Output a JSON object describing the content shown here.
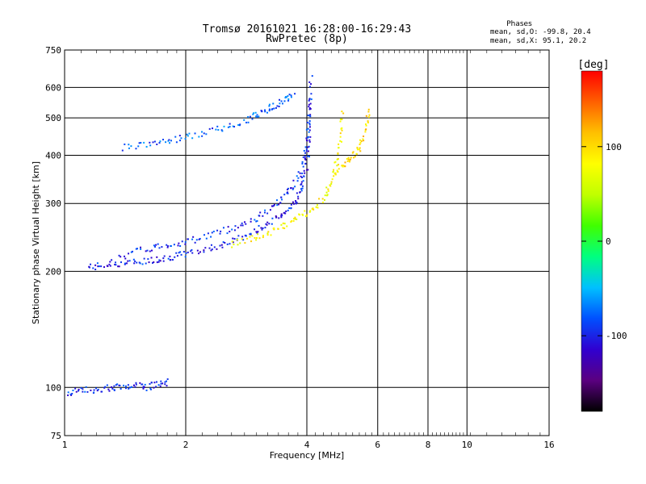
{
  "chart_data": {
    "type": "scatter",
    "title": "Tromsø 20161021 16:28:00-16:29:43",
    "subtitle": "RwPretec (8p)",
    "xlabel": "Frequency [MHz]",
    "ylabel": "Stationary phase Virtual Height [km]",
    "x_scale": "log",
    "y_scale": "log",
    "xlim": [
      1,
      16
    ],
    "ylim": [
      75,
      750
    ],
    "x_ticks": [
      "1",
      "2",
      "4",
      "6",
      "8",
      "10",
      "16"
    ],
    "y_ticks": [
      "75",
      "100",
      "200",
      "300",
      "400",
      "500",
      "600",
      "750"
    ],
    "grid": true,
    "legend": {
      "title": "Phases",
      "lines": [
        "mean, sd,O: -99.8, 20.4",
        "mean, sd,X:  95.1, 20.2"
      ]
    },
    "colorbar": {
      "label": "[deg]",
      "range": [
        -180,
        180
      ],
      "ticks": [
        "100",
        "0",
        "-100"
      ],
      "colormap": [
        "#000000",
        "#5a0080",
        "#3000d0",
        "#0050ff",
        "#00c0ff",
        "#00ff80",
        "#40ff00",
        "#c0ff00",
        "#ffff00",
        "#ffc000",
        "#ff6000",
        "#ff0000"
      ]
    },
    "series": [
      {
        "trace": "O-lower",
        "phase": -100,
        "x": [
          1.15,
          1.25,
          1.4,
          1.55,
          1.7,
          1.85,
          2.0,
          2.25,
          2.5,
          2.75,
          3.0,
          3.25,
          3.5,
          3.7,
          3.85,
          3.95,
          4.02,
          4.05,
          4.08
        ],
        "y": [
          205,
          207,
          210,
          212,
          215,
          218,
          222,
          228,
          236,
          244,
          255,
          268,
          282,
          298,
          320,
          350,
          400,
          470,
          570
        ]
      },
      {
        "trace": "O-upper",
        "phase": -95,
        "x": [
          1.3,
          1.5,
          1.7,
          1.9,
          2.1,
          2.4,
          2.7,
          3.0,
          3.3,
          3.5,
          3.7,
          3.9,
          4.0,
          4.05,
          4.1
        ],
        "y": [
          212,
          225,
          232,
          236,
          242,
          252,
          262,
          275,
          292,
          310,
          335,
          370,
          420,
          500,
          640
        ]
      },
      {
        "trace": "X-lower",
        "phase": 85,
        "x": [
          2.6,
          2.9,
          3.2,
          3.5,
          3.8,
          4.1,
          4.4,
          4.6,
          4.75,
          4.85,
          4.9
        ],
        "y": [
          235,
          242,
          250,
          262,
          275,
          288,
          310,
          340,
          380,
          440,
          520
        ]
      },
      {
        "trace": "X-upper",
        "phase": 100,
        "x": [
          4.7,
          5.0,
          5.2,
          5.4,
          5.6,
          5.7
        ],
        "y": [
          360,
          380,
          400,
          420,
          460,
          520
        ]
      },
      {
        "trace": "upper-layer",
        "phase": -80,
        "x": [
          1.4,
          1.6,
          1.8,
          2.0,
          2.3,
          2.6,
          2.9,
          3.1,
          3.3,
          3.5,
          3.7
        ],
        "y": [
          420,
          428,
          436,
          446,
          460,
          478,
          500,
          518,
          535,
          555,
          580
        ]
      },
      {
        "trace": "low-echo",
        "phase": -95,
        "x": [
          1.02,
          1.1,
          1.2,
          1.3,
          1.4,
          1.5,
          1.6,
          1.7,
          1.8
        ],
        "y": [
          97,
          98,
          99,
          100,
          100,
          101,
          100,
          102,
          103
        ]
      }
    ]
  }
}
